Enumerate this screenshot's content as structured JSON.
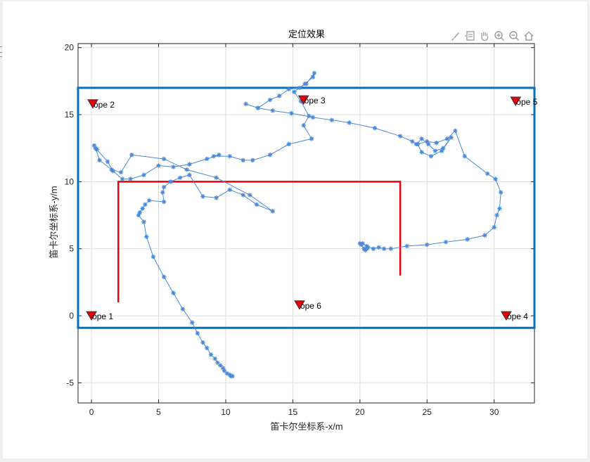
{
  "window": {
    "background": "#f0f0f0"
  },
  "toolbar": {
    "buttons": [
      {
        "name": "brush-icon"
      },
      {
        "name": "datatip-icon"
      },
      {
        "name": "pan-hand-icon"
      },
      {
        "name": "zoom-in-icon"
      },
      {
        "name": "zoom-out-icon"
      },
      {
        "name": "home-icon"
      }
    ]
  },
  "chart_data": {
    "type": "scatter",
    "title": "定位效果",
    "xlabel": "笛卡尔坐标系-x/m",
    "ylabel": "笛卡尔坐标系-y/m",
    "xlim": [
      -1,
      33
    ],
    "ylim": [
      -6.5,
      20.3
    ],
    "xticks": [
      0,
      5,
      10,
      15,
      20,
      25,
      30
    ],
    "yticks": [
      -5,
      0,
      5,
      10,
      15,
      20
    ],
    "grid": true,
    "colors": {
      "trajectory": "#4a88d8",
      "rope": "#e8000b",
      "region": "#0072bd",
      "anchor": "#e8000b",
      "anchor_edge": "#333333"
    },
    "region_rectangle": {
      "x": [
        -1,
        33
      ],
      "y": [
        -0.9,
        17
      ]
    },
    "rope_path": {
      "x": [
        2,
        2,
        23,
        23
      ],
      "y": [
        1,
        10,
        10,
        3
      ]
    },
    "anchors": [
      {
        "label": "ope 1",
        "x": 0,
        "y": 0
      },
      {
        "label": "ope 2",
        "x": 0.1,
        "y": 15.8
      },
      {
        "label": "ope 3",
        "x": 15.8,
        "y": 16.1
      },
      {
        "label": "ope 4",
        "x": 30.9,
        "y": 0
      },
      {
        "label": "ope 5",
        "x": 31.6,
        "y": 16
      },
      {
        "label": "ope 6",
        "x": 15.5,
        "y": 0.8
      }
    ],
    "trajectory": {
      "x": [
        10.5,
        10.4,
        10.3,
        10.1,
        9.9,
        9.8,
        9.6,
        9.4,
        9.2,
        8.9,
        8.6,
        8.3,
        7.9,
        7.5,
        6.8,
        6.1,
        5.4,
        4.6,
        4.1,
        3.9,
        3.5,
        3.6,
        3.8,
        4.0,
        4.3,
        5.4,
        5.3,
        5.4,
        5.9,
        6.6,
        7.3,
        8.3,
        9.3,
        10.3,
        11.3,
        12.3,
        13.5,
        11.8,
        9.3,
        7.1,
        5.4,
        3.0,
        2.2,
        1.5,
        0.6,
        0.3,
        0.2,
        0.4,
        1.2,
        1.6,
        2.3,
        2.9,
        3.9,
        5.0,
        6.1,
        7.3,
        8.6,
        9.5,
        9.1,
        10.3,
        11.3,
        12.0,
        13.3,
        14.7,
        16.4,
        15.8,
        16.2,
        15.6,
        15.1,
        15.9,
        16.5,
        16.6,
        16.0,
        15.5,
        14.7,
        14.0,
        13.3,
        12.4,
        11.5,
        12.4,
        13.5,
        14.9,
        16.5,
        17.9,
        19.2,
        21.1,
        23.0,
        23.9,
        24.2,
        24.6,
        25.1,
        25.6,
        26.2,
        26.8,
        26.1,
        25.3,
        24.6,
        24.3,
        25.0,
        25.7,
        26.5,
        27.1,
        27.8,
        29.5,
        30.1,
        30.5,
        30.4,
        30.2,
        30.0,
        29.3,
        28.0,
        26.4,
        25.0,
        23.5,
        22.3,
        21.8,
        21.4,
        21.0,
        20.5,
        20.2,
        20.0,
        20.1,
        20.3,
        20.4,
        20.5,
        20.6
      ],
      "y": [
        -4.5,
        -4.5,
        -4.4,
        -4.3,
        -4.1,
        -3.9,
        -3.7,
        -3.5,
        -3.2,
        -2.9,
        -2.4,
        -2.0,
        -1.3,
        -0.5,
        0.5,
        1.7,
        2.9,
        4.4,
        5.9,
        7.0,
        7.5,
        7.7,
        8.0,
        8.3,
        8.6,
        8.5,
        9.2,
        9.6,
        10.0,
        10.3,
        10.5,
        8.9,
        8.8,
        9.4,
        9.0,
        8.3,
        7.8,
        9.0,
        10.3,
        10.9,
        11.7,
        12.0,
        10.7,
        10.9,
        11.6,
        12.5,
        12.7,
        12.4,
        11.5,
        10.8,
        10.2,
        10.2,
        10.5,
        11.2,
        11.1,
        11.3,
        11.7,
        12.0,
        11.9,
        11.9,
        11.6,
        11.6,
        12.0,
        12.8,
        13.2,
        14.2,
        14.9,
        16.0,
        16.7,
        17.3,
        17.8,
        18.1,
        17.3,
        17.0,
        16.9,
        16.4,
        16.1,
        15.5,
        15.8,
        15.5,
        15.3,
        15.1,
        14.8,
        14.6,
        14.4,
        14.0,
        13.4,
        13.0,
        12.8,
        13.2,
        12.8,
        12.3,
        12.5,
        13.3,
        12.3,
        11.9,
        12.2,
        12.8,
        13.0,
        12.9,
        13.2,
        13.8,
        11.9,
        10.6,
        10.2,
        9.2,
        8.0,
        7.5,
        6.6,
        6.0,
        5.7,
        5.5,
        5.3,
        5.2,
        5.0,
        5.0,
        5.1,
        5.0,
        5.2,
        5.4,
        5.4,
        5.3,
        5.0,
        4.9,
        5.0,
        5.1
      ]
    }
  }
}
